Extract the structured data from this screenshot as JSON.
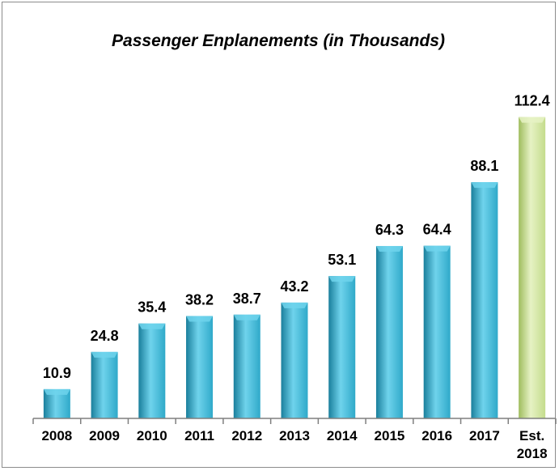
{
  "chart_data": {
    "type": "bar",
    "title": "Passenger Enplanements (in Thousands)",
    "categories": [
      "2008",
      "2009",
      "2010",
      "2011",
      "2012",
      "2013",
      "2014",
      "2015",
      "2016",
      "2017",
      "Est. 2018"
    ],
    "category_lines": [
      [
        "2008"
      ],
      [
        "2009"
      ],
      [
        "2010"
      ],
      [
        "2011"
      ],
      [
        "2012"
      ],
      [
        "2013"
      ],
      [
        "2014"
      ],
      [
        "2015"
      ],
      [
        "2016"
      ],
      [
        "2017"
      ],
      [
        "Est.",
        "2018"
      ]
    ],
    "values": [
      10.9,
      24.8,
      35.4,
      38.2,
      38.7,
      43.2,
      53.1,
      64.3,
      64.4,
      88.1,
      112.4
    ],
    "value_labels": [
      "10.9",
      "24.8",
      "35.4",
      "38.2",
      "38.7",
      "43.2",
      "53.1",
      "64.3",
      "64.4",
      "88.1",
      "112.4"
    ],
    "xlabel": "",
    "ylabel": "",
    "ylim": [
      0,
      120
    ],
    "grid": false,
    "legend": "none",
    "colors": {
      "actual_bar": "#2fa9c9",
      "actual_bar_light": "#6fd3ec",
      "actual_bar_dark": "#1a7f9c",
      "estimate_bar": "#c4dc8c",
      "estimate_bar_light": "#e6f2c4",
      "estimate_bar_dark": "#9fbd5e",
      "axis": "#7f7f7f"
    }
  }
}
